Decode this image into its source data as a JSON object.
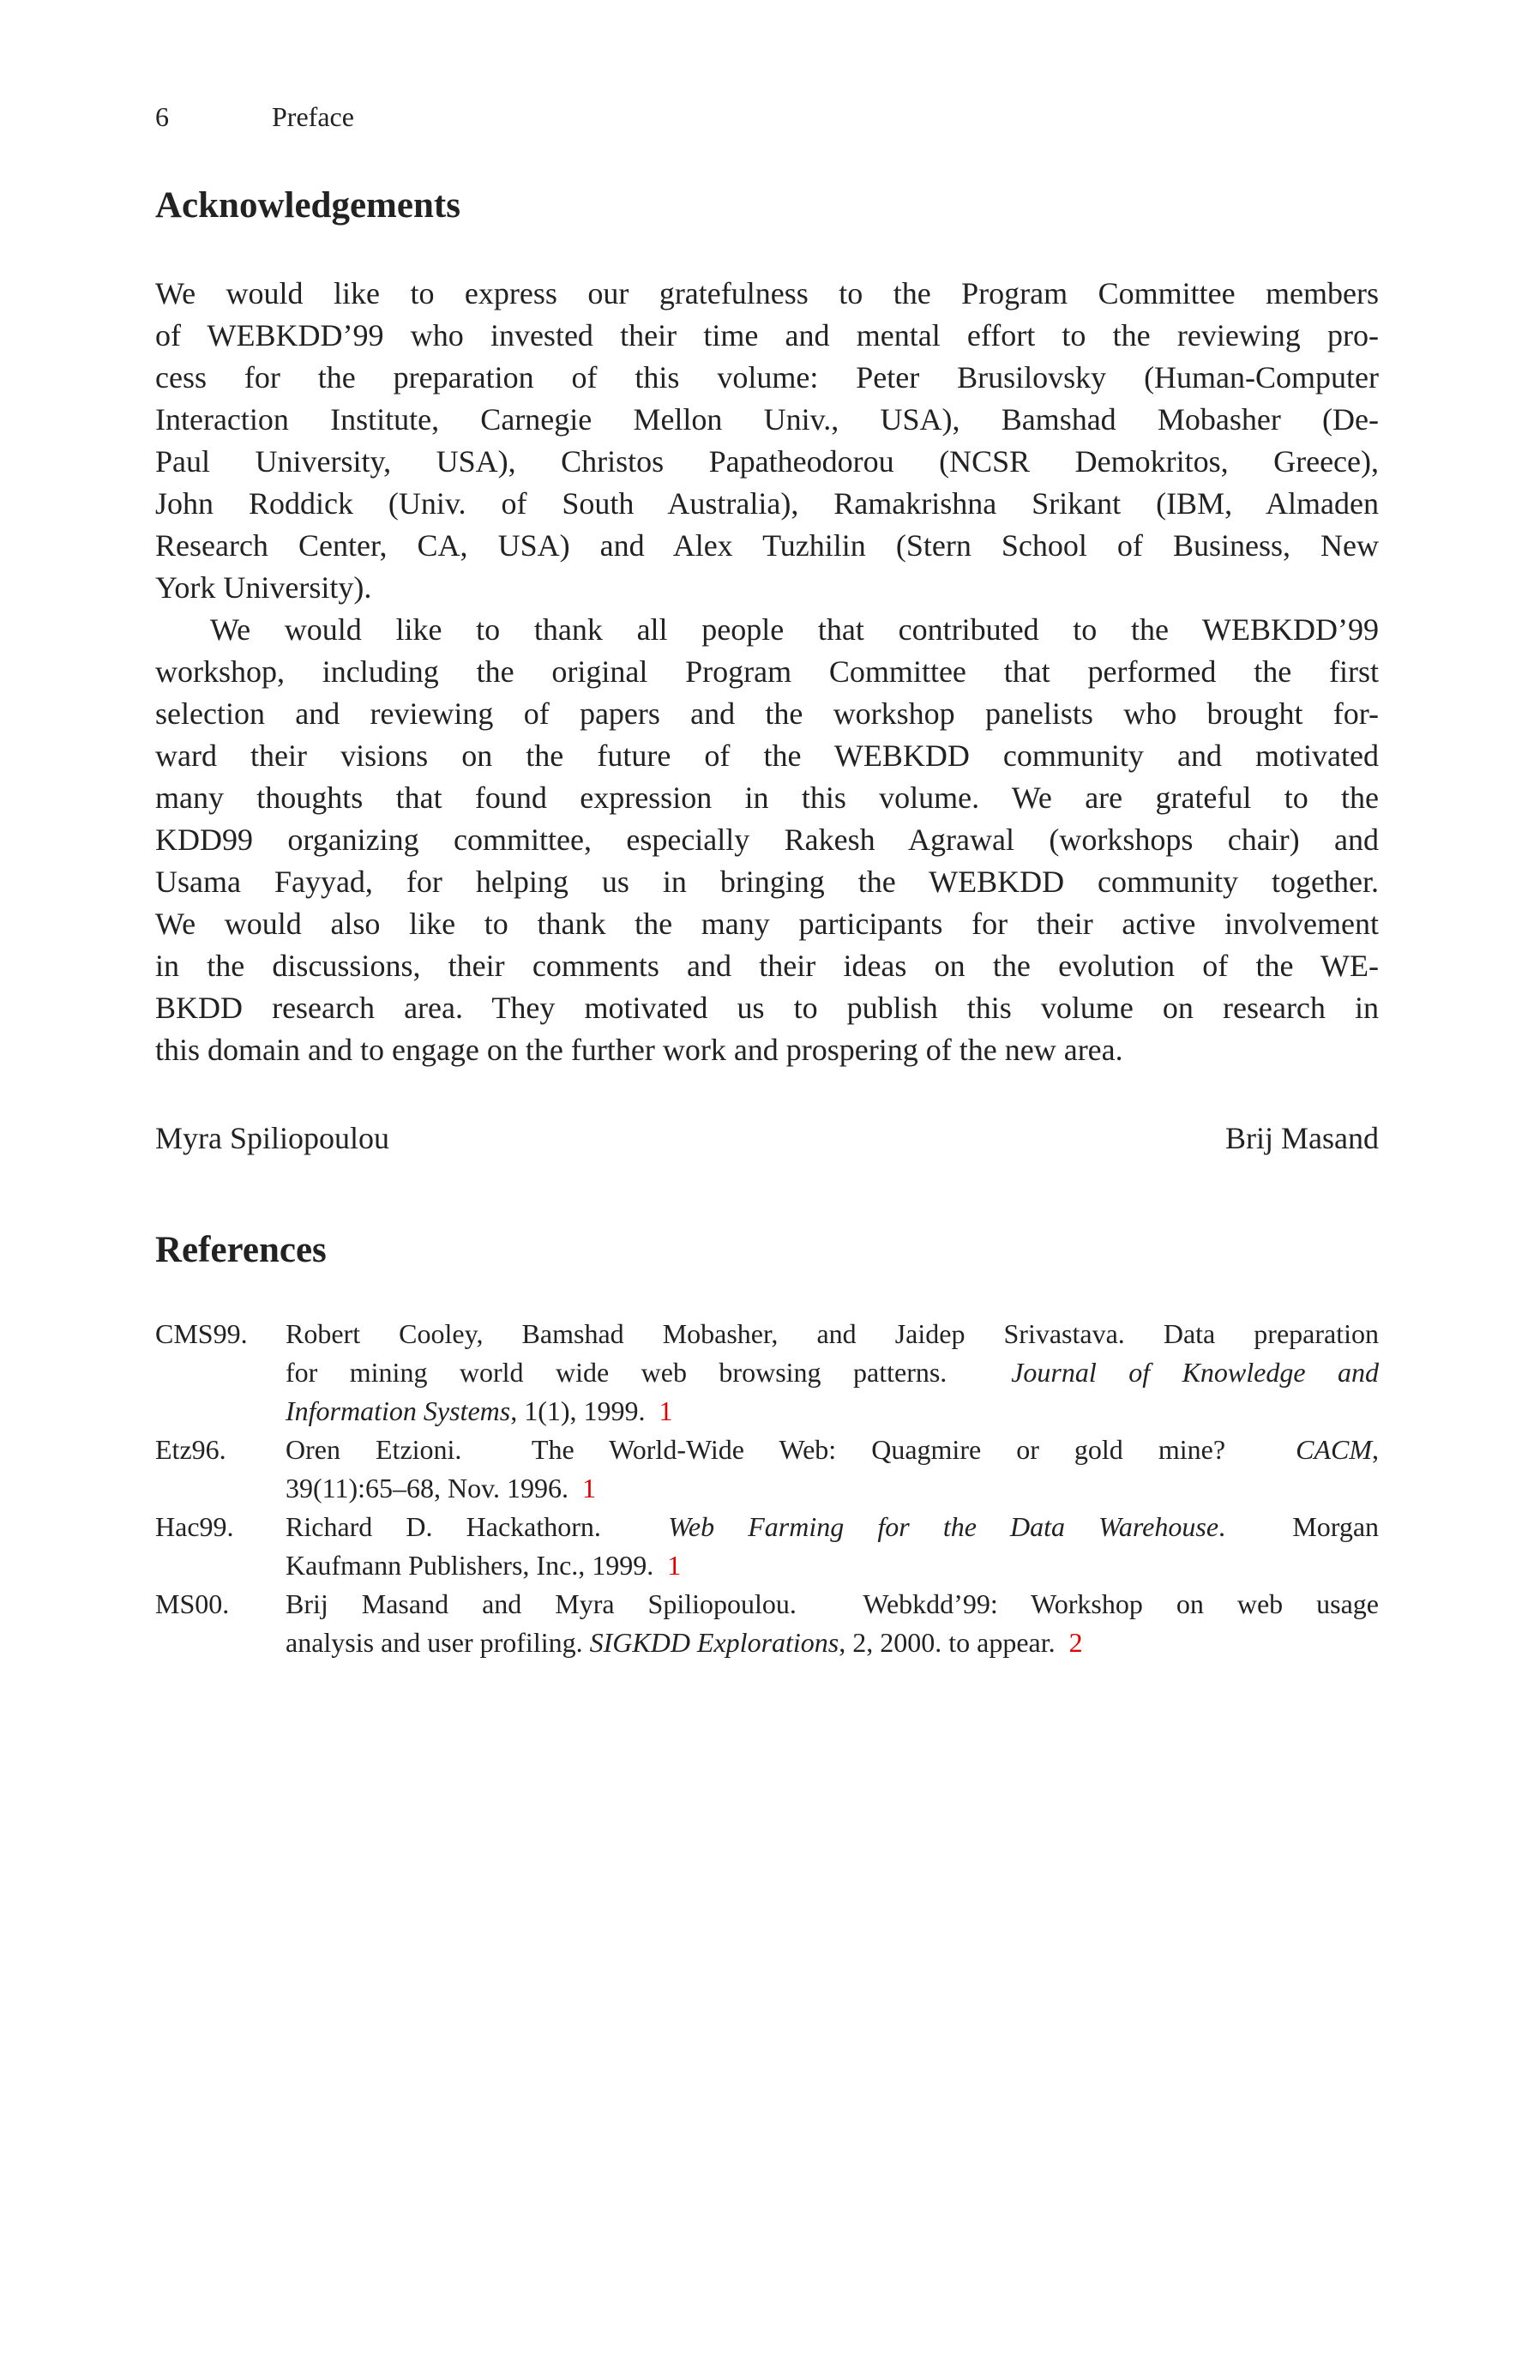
{
  "header": {
    "page_number": "6",
    "running_title": "Preface"
  },
  "acknowledgements": {
    "title": "Acknowledgements",
    "paragraphs": [
      [
        "We would like to express our gratefulness to the Program Committee members",
        "of WEBKDD’99 who invested their time and mental effort to the reviewing pro-",
        "cess for the preparation of this volume: Peter Brusilovsky (Human-Computer",
        "Interaction Institute, Carnegie Mellon Univ., USA), Bamshad Mobasher (De-",
        "Paul University, USA), Christos Papatheodorou (NCSR Demokritos, Greece),",
        "John Roddick (Univ. of South Australia), Ramakrishna Srikant (IBM, Almaden",
        "Research Center, CA, USA) and Alex Tuzhilin (Stern School of Business, New",
        "York University)."
      ],
      [
        "We would like to thank all people that contributed to the WEBKDD’99",
        "workshop, including the original Program Committee that performed the first",
        "selection and reviewing of papers and the workshop panelists who brought for-",
        "ward their visions on the future of the WEBKDD community and motivated",
        "many thoughts that found expression in this volume. We are grateful to the",
        "KDD99 organizing committee, especially Rakesh Agrawal (workshops chair) and",
        "Usama Fayyad, for helping us in bringing the WEBKDD community together.",
        "We would also like to thank the many participants for their active involvement",
        "in the discussions, their comments and their ideas on the evolution of the WE-",
        "BKDD research area. They motivated us to publish this volume on research in",
        "this domain and to engage on the further work and prospering of the new area."
      ]
    ],
    "signatures": [
      "Myra Spiliopoulou",
      "Brij Masand"
    ]
  },
  "references": {
    "title": "References",
    "link_color": "#e00000",
    "items": [
      {
        "label": "CMS99.",
        "lines": [
          [
            {
              "t": "Robert Cooley, Bamshad Mobasher, and Jaidep Srivastava. Data preparation"
            }
          ],
          [
            {
              "t": "for mining world wide web browsing patterns.  "
            },
            {
              "t": "Journal of Knowledge and",
              "i": true
            }
          ],
          [
            {
              "t": "Information Systems",
              "i": true
            },
            {
              "t": ", 1(1), 1999.  "
            },
            {
              "t": "1",
              "link": true
            }
          ]
        ]
      },
      {
        "label": "Etz96.",
        "lines": [
          [
            {
              "t": "Oren Etzioni.  The World-Wide Web: Quagmire or gold mine?  "
            },
            {
              "t": "CACM",
              "i": true
            },
            {
              "t": ","
            }
          ],
          [
            {
              "t": "39(11):65–68, Nov. 1996.  "
            },
            {
              "t": "1",
              "link": true
            }
          ]
        ]
      },
      {
        "label": "Hac99.",
        "lines": [
          [
            {
              "t": "Richard D. Hackathorn.  "
            },
            {
              "t": "Web Farming for the Data Warehouse",
              "i": true
            },
            {
              "t": ".  Morgan"
            }
          ],
          [
            {
              "t": "Kaufmann Publishers, Inc., 1999.  "
            },
            {
              "t": "1",
              "link": true
            }
          ]
        ]
      },
      {
        "label": "MS00.",
        "lines": [
          [
            {
              "t": "Brij Masand and Myra Spiliopoulou.  Webkdd’99: Workshop on web usage"
            }
          ],
          [
            {
              "t": "analysis and user profiling. "
            },
            {
              "t": "SIGKDD Explorations",
              "i": true
            },
            {
              "t": ", 2, 2000. to appear.  "
            },
            {
              "t": "2",
              "link": true
            }
          ]
        ]
      }
    ]
  }
}
